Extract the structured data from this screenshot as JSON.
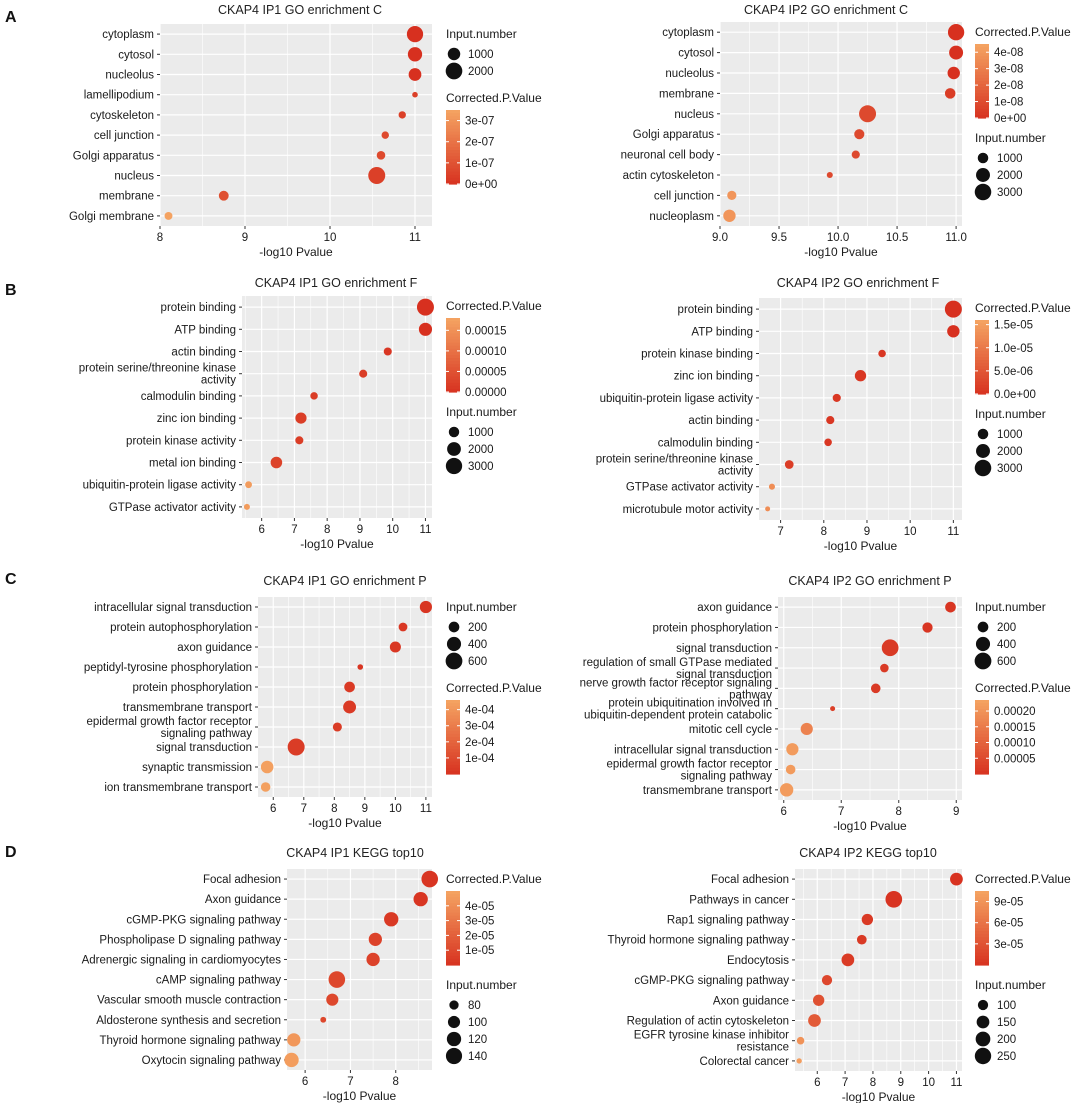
{
  "panel_labels": [
    "A",
    "B",
    "C",
    "D"
  ],
  "colors": {
    "low_p": "#d7301f",
    "high_p": "#f4a261",
    "panel_bg": "#ebebeb",
    "grid": "#ffffff"
  },
  "chart_data": [
    {
      "type": "scatter",
      "title": "CKAP4 IP1 GO enrichment C",
      "xlabel": "-log10 Pvalue",
      "xlim": [
        8,
        11.2
      ],
      "xticks": [
        8,
        9,
        10,
        11
      ],
      "categories": [
        "cytoplasm",
        "cytosol",
        "nucleolus",
        "lamellipodium",
        "cytoskeleton",
        "cell junction",
        "Golgi apparatus",
        "nucleus",
        "membrane",
        "Golgi membrane"
      ],
      "x": [
        11.0,
        11.0,
        11.0,
        11.0,
        10.85,
        10.65,
        10.6,
        10.55,
        8.75,
        8.1
      ],
      "input_number": [
        1900,
        1400,
        1050,
        100,
        240,
        250,
        380,
        2100,
        550,
        300
      ],
      "corrected_p": [
        0,
        0,
        0,
        5e-08,
        5e-08,
        8e-08,
        8e-08,
        5e-08,
        1e-07,
        3.5e-07
      ],
      "color_legend": {
        "title": "Corrected.P.Value",
        "max": 3.5e-07,
        "ticks": [
          "3e-07",
          "2e-07",
          "1e-07",
          "0e+00"
        ],
        "tick_values": [
          3e-07,
          2e-07,
          1e-07,
          0
        ]
      },
      "size_legend": {
        "title": "Input.number",
        "labels": [
          "1000",
          "2000"
        ],
        "values": [
          1000,
          2000
        ]
      },
      "size_max": 2100,
      "legend_order": "size-first"
    },
    {
      "type": "scatter",
      "title": "CKAP4 IP2 GO enrichment C",
      "xlabel": "-log10 Pvalue",
      "xlim": [
        9,
        11.05
      ],
      "xticks": [
        9.0,
        9.5,
        10.0,
        10.5,
        11.0
      ],
      "xtick_labels": [
        "9.0",
        "9.5",
        "10.0",
        "10.5",
        "11.0"
      ],
      "categories": [
        "cytoplasm",
        "cytosol",
        "nucleolus",
        "membrane",
        "nucleus",
        "Golgi apparatus",
        "neuronal cell body",
        "actin cytoskeleton",
        "cell junction",
        "nucleoplasm"
      ],
      "x": [
        11.0,
        11.0,
        10.98,
        10.95,
        10.25,
        10.18,
        10.15,
        9.93,
        9.1,
        9.08
      ],
      "input_number": [
        2900,
        2000,
        1500,
        1000,
        3200,
        900,
        500,
        200,
        700,
        1500
      ],
      "corrected_p": [
        0,
        0,
        0,
        5e-09,
        1e-08,
        1e-08,
        1e-08,
        1e-08,
        4e-08,
        4e-08
      ],
      "color_legend": {
        "title": "Corrected.P.Value",
        "max": 4.5e-08,
        "ticks": [
          "4e-08",
          "3e-08",
          "2e-08",
          "1e-08",
          "0e+00"
        ],
        "tick_values": [
          4e-08,
          3e-08,
          2e-08,
          1e-08,
          0
        ]
      },
      "size_legend": {
        "title": "Input.number",
        "labels": [
          "1000",
          "2000",
          "3000"
        ],
        "values": [
          1000,
          2000,
          3000
        ]
      },
      "size_max": 3200,
      "legend_order": "color-first"
    },
    {
      "type": "scatter",
      "title": "CKAP4 IP1 GO enrichment F",
      "xlabel": "-log10 Pvalue",
      "xlim": [
        5.4,
        11.2
      ],
      "xticks": [
        6,
        7,
        8,
        9,
        10,
        11
      ],
      "categories": [
        "protein binding",
        "ATP binding",
        "actin binding",
        "protein serine/threonine kinase\nactivity",
        "calmodulin binding",
        "zinc ion binding",
        "protein kinase activity",
        "metal ion binding",
        "ubiquitin-protein ligase activity",
        "GTPase activator activity"
      ],
      "x": [
        11.0,
        11.0,
        9.85,
        9.1,
        7.6,
        7.2,
        7.15,
        6.45,
        5.6,
        5.55
      ],
      "input_number": [
        3300,
        1800,
        500,
        500,
        400,
        1200,
        500,
        1300,
        300,
        200
      ],
      "corrected_p": [
        0,
        0,
        1e-05,
        2e-05,
        2e-05,
        2e-05,
        2e-05,
        3e-05,
        0.00017,
        0.00017
      ],
      "color_legend": {
        "title": "Corrected.P.Value",
        "max": 0.00018,
        "ticks": [
          "0.00015",
          "0.00010",
          "0.00005",
          "0.00000"
        ],
        "tick_values": [
          0.00015,
          0.0001,
          5e-05,
          0
        ]
      },
      "size_legend": {
        "title": "Input.number",
        "labels": [
          "1000",
          "2000",
          "3000"
        ],
        "values": [
          1000,
          2000,
          3000
        ]
      },
      "size_max": 3300,
      "legend_order": "color-first"
    },
    {
      "type": "scatter",
      "title": "CKAP4 IP2 GO enrichment F",
      "xlabel": "-log10 Pvalue",
      "xlim": [
        6.5,
        11.2
      ],
      "xticks": [
        7,
        8,
        9,
        10,
        11
      ],
      "categories": [
        "protein binding",
        "ATP binding",
        "protein kinase binding",
        "zinc ion binding",
        "ubiquitin-protein ligase activity",
        "actin binding",
        "calmodulin binding",
        "protein serine/threonine kinase\nactivity",
        "GTPase activator activity",
        "microtubule motor activity"
      ],
      "x": [
        11.0,
        11.0,
        9.35,
        8.85,
        8.3,
        8.15,
        8.1,
        7.2,
        6.8,
        6.7
      ],
      "input_number": [
        3200,
        1500,
        400,
        1200,
        500,
        500,
        400,
        600,
        200,
        100
      ],
      "corrected_p": [
        0,
        0,
        1e-06,
        1e-06,
        1e-06,
        1e-06,
        1e-06,
        2e-06,
        1.3e-05,
        1.3e-05
      ],
      "color_legend": {
        "title": "Corrected.P.Value",
        "max": 1.6e-05,
        "ticks": [
          "1.5e-05",
          "1.0e-05",
          "5.0e-06",
          "0.0e+00"
        ],
        "tick_values": [
          1.5e-05,
          1e-05,
          5e-06,
          0
        ]
      },
      "size_legend": {
        "title": "Input.number",
        "labels": [
          "1000",
          "2000",
          "3000"
        ],
        "values": [
          1000,
          2000,
          3000
        ]
      },
      "size_max": 3200,
      "legend_order": "color-first"
    },
    {
      "type": "scatter",
      "title": "CKAP4 IP1 GO enrichment P",
      "xlabel": "-log10 Pvalue",
      "xlim": [
        5.5,
        11.2
      ],
      "xticks": [
        6,
        7,
        8,
        9,
        10,
        11
      ],
      "categories": [
        "intracellular signal transduction",
        "protein autophosphorylation",
        "axon guidance",
        "peptidyl-tyrosine phosphorylation",
        "protein phosphorylation",
        "transmembrane transport",
        "epidermal growth factor receptor\nsignaling pathway",
        "signal transduction",
        "synaptic transmission",
        "ion transmembrane transport"
      ],
      "x": [
        11.0,
        10.25,
        10.0,
        8.85,
        8.5,
        8.5,
        8.1,
        6.75,
        5.8,
        5.75
      ],
      "input_number": [
        280,
        120,
        220,
        30,
        200,
        320,
        130,
        620,
        300,
        150
      ],
      "corrected_p": [
        2e-05,
        3e-05,
        3e-05,
        2e-05,
        4e-05,
        4e-05,
        5e-05,
        5e-05,
        0.00045,
        0.00045
      ],
      "color_legend": {
        "title": "Corrected.P.Value",
        "max": 0.00046,
        "ticks": [
          "4e-04",
          "3e-04",
          "2e-04",
          "1e-04"
        ],
        "tick_values": [
          0.0004,
          0.0003,
          0.0002,
          0.0001
        ]
      },
      "size_legend": {
        "title": "Input.number",
        "labels": [
          "200",
          "400",
          "600"
        ],
        "values": [
          200,
          400,
          600
        ]
      },
      "size_max": 620,
      "legend_order": "size-first"
    },
    {
      "type": "scatter",
      "title": "CKAP4 IP2 GO enrichment P",
      "xlabel": "-log10 Pvalue",
      "xlim": [
        5.9,
        9.1
      ],
      "xticks": [
        6,
        7,
        8,
        9
      ],
      "categories": [
        "axon guidance",
        "protein phosphorylation",
        "signal transduction",
        "regulation of small GTPase mediated\nsignal transduction",
        "nerve growth factor receptor signaling\npathway",
        "protein ubiquitination involved in\nubiquitin-dependent protein catabolic",
        "mitotic cell cycle",
        "intracellular signal transduction",
        "epidermal growth factor receptor\nsignaling pathway",
        "transmembrane transport"
      ],
      "x": [
        8.9,
        8.5,
        7.85,
        7.75,
        7.6,
        6.85,
        6.4,
        6.15,
        6.12,
        6.05
      ],
      "input_number": [
        200,
        180,
        600,
        110,
        150,
        20,
        280,
        280,
        150,
        350
      ],
      "corrected_p": [
        1e-05,
        1e-05,
        2e-05,
        2e-05,
        2e-05,
        3e-05,
        0.00017,
        0.00022,
        0.00022,
        0.00022
      ],
      "color_legend": {
        "title": "Corrected.P.Value",
        "max": 0.000235,
        "ticks": [
          "0.00020",
          "0.00015",
          "0.00010",
          "0.00005"
        ],
        "tick_values": [
          0.0002,
          0.00015,
          0.0001,
          5e-05
        ]
      },
      "size_legend": {
        "title": "Input.number",
        "labels": [
          "200",
          "400",
          "600"
        ],
        "values": [
          200,
          400,
          600
        ]
      },
      "size_max": 620,
      "legend_order": "size-first"
    },
    {
      "type": "scatter",
      "title": "CKAP4 IP1 KEGG top10",
      "xlabel": "-log10 Pvalue",
      "xlim": [
        5.6,
        8.8
      ],
      "xticks": [
        6,
        7,
        8
      ],
      "categories": [
        "Focal adhesion",
        "Axon guidance",
        "cGMP-PKG signaling pathway",
        "Phospholipase D signaling pathway",
        "Adrenergic signaling in cardiomyocytes",
        "cAMP signaling pathway",
        "Vascular smooth muscle contraction",
        "Aldosterone synthesis and secretion",
        "Thyroid hormone signaling pathway",
        "Oxytocin signaling pathway"
      ],
      "x": [
        8.75,
        8.55,
        7.9,
        7.55,
        7.5,
        6.7,
        6.6,
        6.4,
        5.75,
        5.7
      ],
      "input_number": [
        145,
        120,
        120,
        110,
        110,
        145,
        100,
        65,
        110,
        120
      ],
      "corrected_p": [
        2e-06,
        2e-06,
        4e-06,
        8e-06,
        8e-06,
        1e-05,
        1e-05,
        1e-05,
        4.5e-05,
        4.8e-05
      ],
      "color_legend": {
        "title": "Corrected.P.Value",
        "max": 5e-05,
        "ticks": [
          "4e-05",
          "3e-05",
          "2e-05",
          "1e-05"
        ],
        "tick_values": [
          4e-05,
          3e-05,
          2e-05,
          1e-05
        ]
      },
      "size_legend": {
        "title": "Input.number",
        "labels": [
          "80",
          "100",
          "120",
          "140"
        ],
        "values": [
          80,
          100,
          120,
          140
        ]
      },
      "size_max": 150,
      "size_min": 60,
      "legend_order": "color-first"
    },
    {
      "type": "scatter",
      "title": "CKAP4 IP2 KEGG top10",
      "xlabel": "-log10 Pvalue",
      "xlim": [
        5.2,
        11.2
      ],
      "xticks": [
        6,
        7,
        8,
        9,
        10,
        11
      ],
      "categories": [
        "Focal adhesion",
        "Pathways in cancer",
        "Rap1 signaling pathway",
        "Thyroid hormone signaling pathway",
        "Endocytosis",
        "cGMP-PKG signaling pathway",
        "Axon guidance",
        "Regulation of actin cytoskeleton",
        "EGFR tyrosine kinase inhibitor\nresistance",
        "Colorectal cancer"
      ],
      "x": [
        11.0,
        8.75,
        7.8,
        7.6,
        7.1,
        6.35,
        6.05,
        5.9,
        5.4,
        5.35
      ],
      "input_number": [
        150,
        260,
        120,
        90,
        150,
        100,
        120,
        150,
        60,
        40
      ],
      "corrected_p": [
        2e-06,
        4e-06,
        8e-06,
        8e-06,
        1e-05,
        2e-05,
        3e-05,
        4e-05,
        9e-05,
        0.0001
      ],
      "color_legend": {
        "title": "Corrected.P.Value",
        "max": 0.000105,
        "ticks": [
          "9e-05",
          "6e-05",
          "3e-05"
        ],
        "tick_values": [
          9e-05,
          6e-05,
          3e-05
        ]
      },
      "size_legend": {
        "title": "Input.number",
        "labels": [
          "100",
          "150",
          "200",
          "250"
        ],
        "values": [
          100,
          150,
          200,
          250
        ]
      },
      "size_max": 270,
      "size_min": 30,
      "legend_order": "color-first"
    }
  ]
}
